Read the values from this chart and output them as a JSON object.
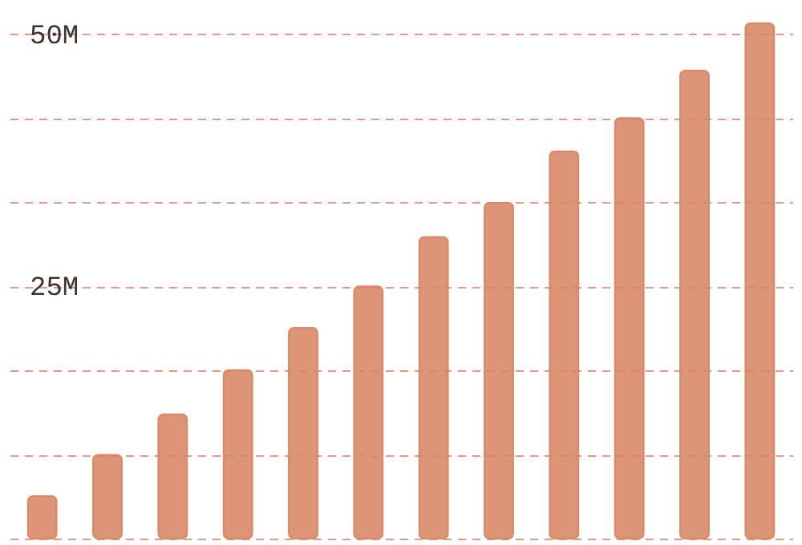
{
  "chart_data": {
    "type": "bar",
    "categories": [
      null,
      null,
      null,
      null,
      null,
      null,
      null,
      null,
      null,
      null,
      null,
      null
    ],
    "series": [
      {
        "color": "#d98a68",
        "values": [
          4.2,
          8.3,
          12.3,
          16.7,
          20.9,
          25,
          29.9,
          33.3,
          38.4,
          41.7,
          46.4,
          51.1
        ]
      }
    ],
    "ylim": [
      0,
      53.1
    ],
    "yticks": [
      {
        "value": 0,
        "label": null
      },
      {
        "value": 8.33,
        "label": null
      },
      {
        "value": 16.67,
        "label": null
      },
      {
        "value": 25,
        "label": "25M"
      },
      {
        "value": 33.33,
        "label": null
      },
      {
        "value": 41.67,
        "label": null
      },
      {
        "value": 50,
        "label": "50M"
      }
    ],
    "grid": "y"
  }
}
